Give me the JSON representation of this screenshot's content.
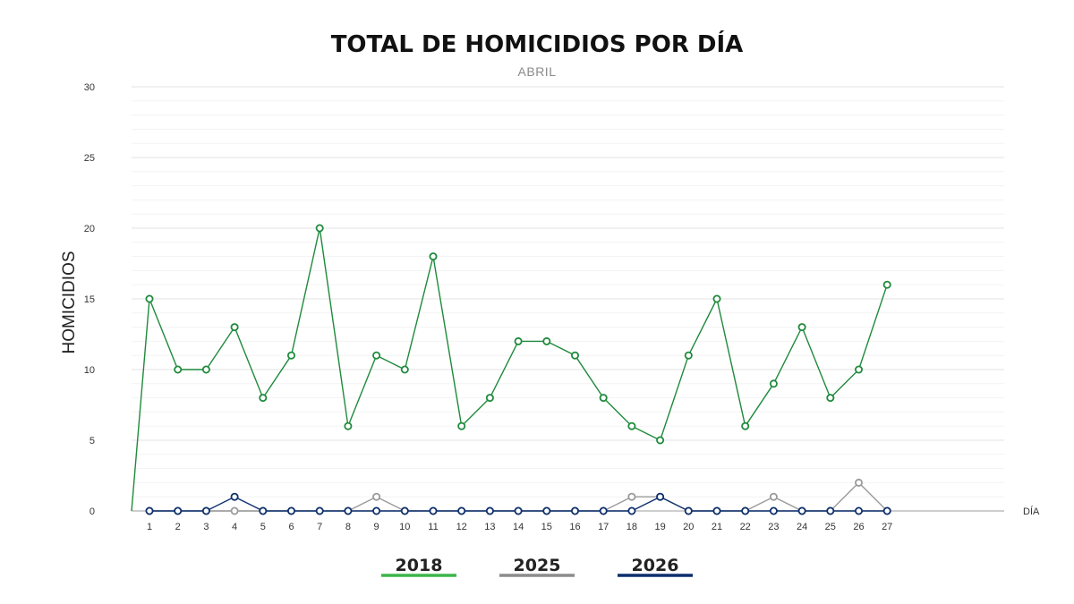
{
  "chart_data": {
    "type": "line",
    "title": "TOTAL DE HOMICIDIOS POR DÍA",
    "subtitle": "ABRIL",
    "xlabel": "DÍA",
    "ylabel": "HOMICIDIOS",
    "ylim": [
      0,
      30
    ],
    "yticks": [
      0,
      5,
      10,
      15,
      20,
      25,
      30
    ],
    "grid": true,
    "legend_position": "bottom",
    "categories": [
      "1",
      "2",
      "3",
      "4",
      "5",
      "6",
      "7",
      "8",
      "9",
      "10",
      "11",
      "12",
      "13",
      "14",
      "15",
      "16",
      "17",
      "18",
      "19",
      "20",
      "21",
      "22",
      "23",
      "24",
      "25",
      "26",
      "27"
    ],
    "series": [
      {
        "name": "2018",
        "color": "#1f8a3c",
        "legend_color": "#3cb54a",
        "values": [
          15,
          10,
          10,
          13,
          8,
          11,
          20,
          6,
          11,
          10,
          18,
          6,
          8,
          12,
          12,
          11,
          8,
          6,
          5,
          11,
          15,
          6,
          9,
          13,
          8,
          10,
          16
        ]
      },
      {
        "name": "2025",
        "color": "#9a9a9a",
        "legend_color": "#8c8c8c",
        "values": [
          0,
          0,
          0,
          0,
          0,
          0,
          0,
          0,
          1,
          0,
          0,
          0,
          0,
          0,
          0,
          0,
          0,
          1,
          1,
          0,
          0,
          0,
          1,
          0,
          0,
          2,
          0
        ]
      },
      {
        "name": "2026",
        "color": "#0d2f6e",
        "legend_color": "#0d2f6e",
        "values": [
          0,
          0,
          0,
          1,
          0,
          0,
          0,
          0,
          0,
          0,
          0,
          0,
          0,
          0,
          0,
          0,
          0,
          0,
          1,
          0,
          0,
          0,
          0,
          0,
          0,
          0,
          0
        ]
      }
    ]
  }
}
